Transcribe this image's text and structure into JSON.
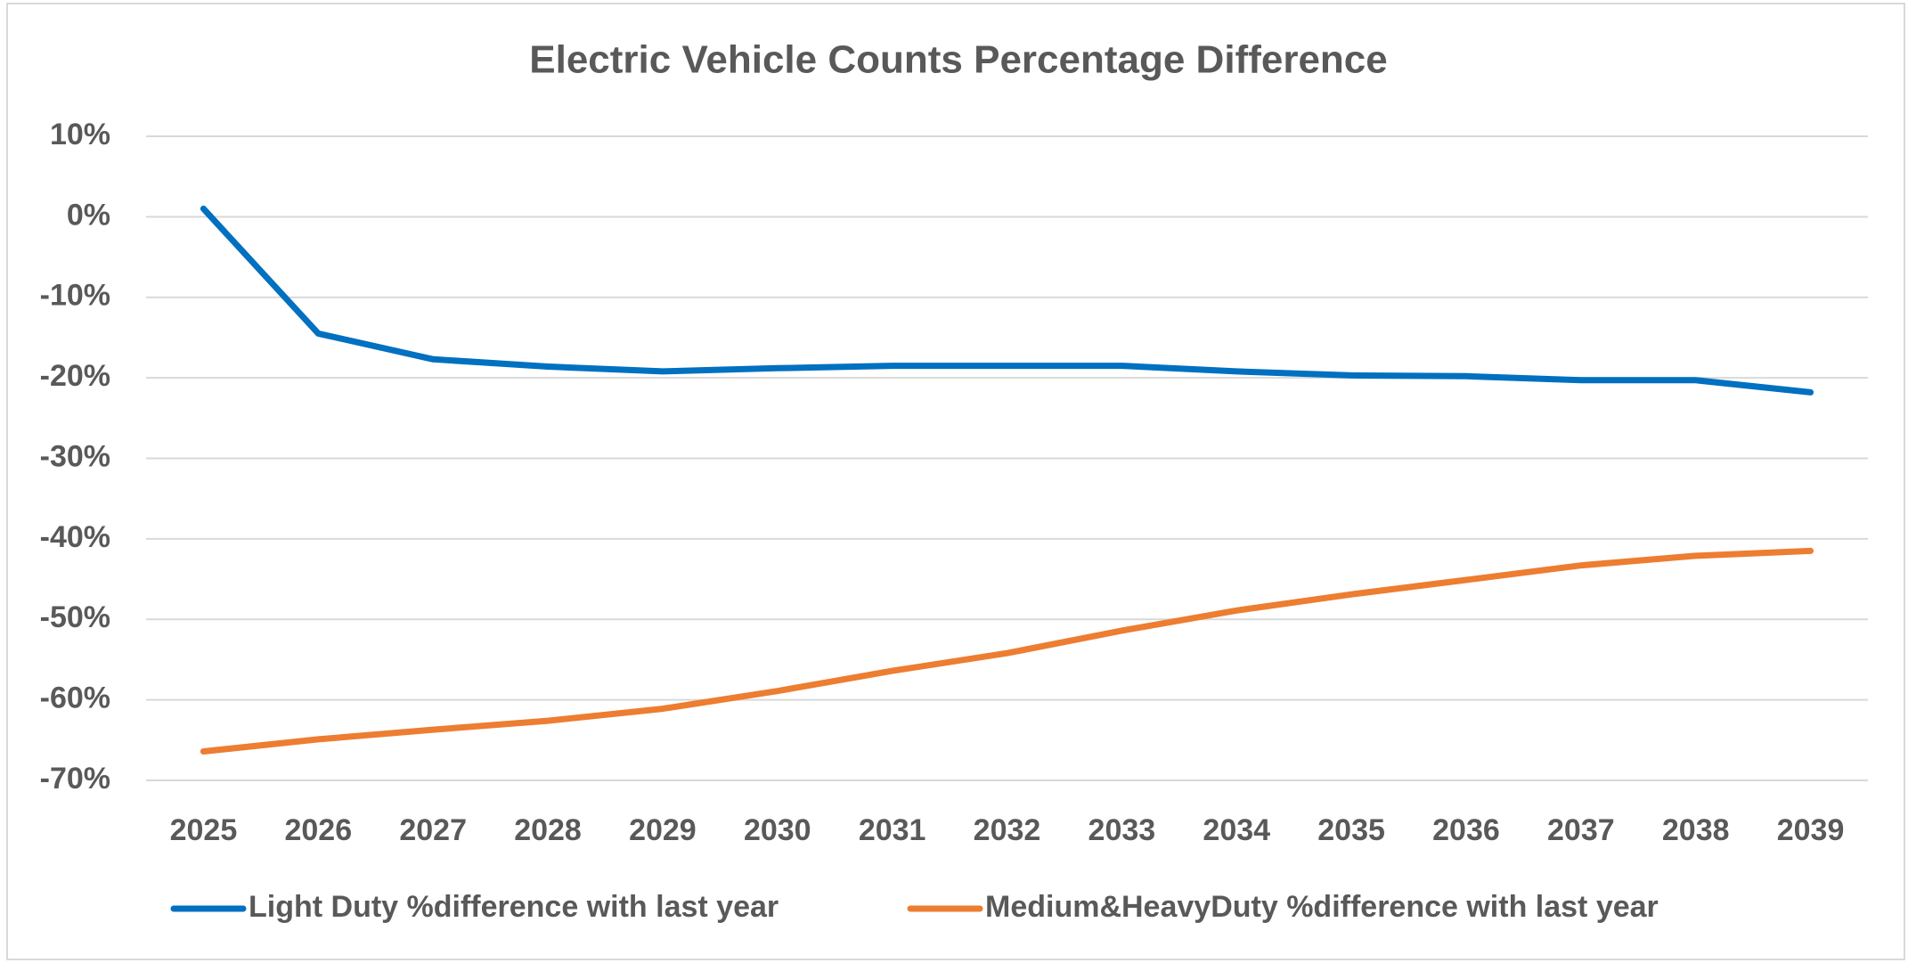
{
  "chart_data": {
    "type": "line",
    "title": "Electric Vehicle Counts Percentage Difference",
    "categories": [
      "2025",
      "2026",
      "2027",
      "2028",
      "2029",
      "2030",
      "2031",
      "2032",
      "2033",
      "2034",
      "2035",
      "2036",
      "2037",
      "2038",
      "2039"
    ],
    "series": [
      {
        "name": "Light Duty %difference with last year",
        "color": "#0070c0",
        "values": [
          1,
          -14.5,
          -17.7,
          -18.6,
          -19.2,
          -18.8,
          -18.5,
          -18.5,
          -18.5,
          -19.2,
          -19.7,
          -19.8,
          -20.3,
          -20.3,
          -21.8
        ]
      },
      {
        "name": "Medium&HeavyDuty %difference with last year",
        "color": "#ed7d31",
        "values": [
          -66.4,
          -64.9,
          -63.7,
          -62.6,
          -61.1,
          -58.9,
          -56.4,
          -54.2,
          -51.4,
          -48.9,
          -46.9,
          -45.1,
          -43.3,
          -42.1,
          -41.5
        ]
      }
    ],
    "ylim": [
      -70,
      10
    ],
    "yticks": [
      {
        "value": 10,
        "label": "10%"
      },
      {
        "value": 0,
        "label": "0%"
      },
      {
        "value": -10,
        "label": "-10%"
      },
      {
        "value": -20,
        "label": "-20%"
      },
      {
        "value": -30,
        "label": "-30%"
      },
      {
        "value": -40,
        "label": "-40%"
      },
      {
        "value": -50,
        "label": "-50%"
      },
      {
        "value": -60,
        "label": "-60%"
      },
      {
        "value": -70,
        "label": "-70%"
      }
    ],
    "grid": true,
    "legend": "bottom"
  }
}
